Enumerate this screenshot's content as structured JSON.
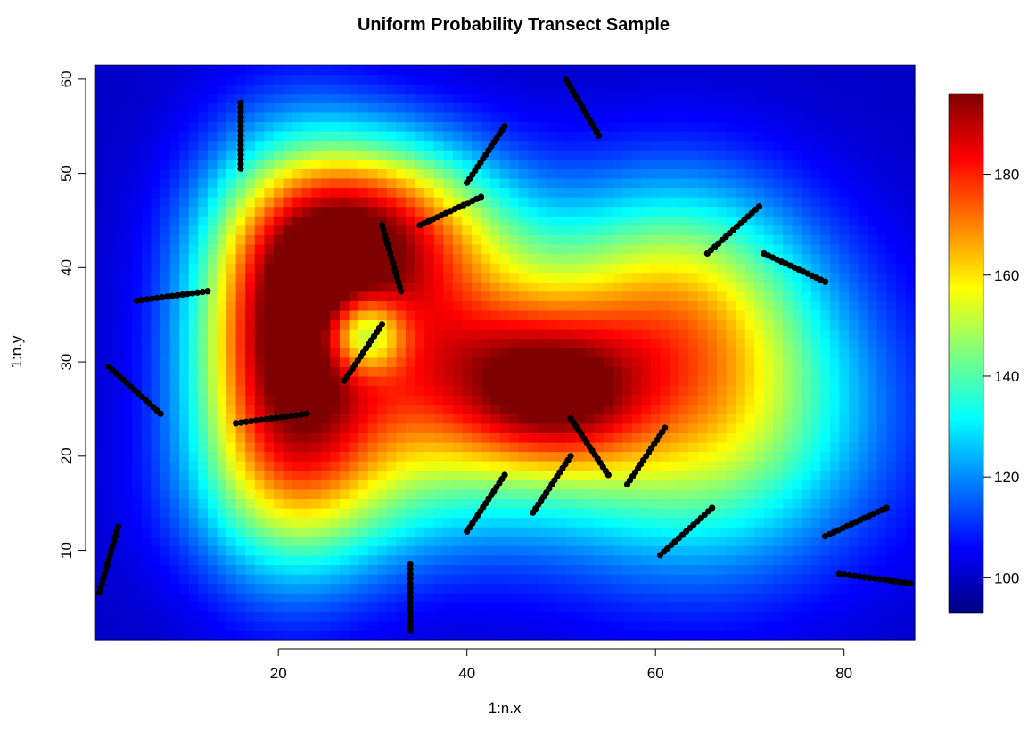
{
  "chart_data": {
    "type": "heatmap",
    "title": "Uniform Probability Transect Sample",
    "xlabel": "1:n.x",
    "ylabel": "1:n.y",
    "xlim": [
      0.5,
      87.5
    ],
    "ylim": [
      0.5,
      61.5
    ],
    "xticks": [
      "20",
      "40",
      "60",
      "80"
    ],
    "yticks": [
      "10",
      "20",
      "30",
      "40",
      "50",
      "60"
    ],
    "colorbar": {
      "range": [
        93,
        196
      ],
      "ticks": [
        "100",
        "120",
        "140",
        "160",
        "180"
      ],
      "colormap": [
        "#00007F",
        "#0000FF",
        "#007FFF",
        "#00FFFF",
        "#7FFF7F",
        "#FFFF00",
        "#FF7F00",
        "#FF0000",
        "#7F0000"
      ]
    },
    "surface": {
      "base": 100,
      "bumps": [
        {
          "x": 21,
          "y": 31,
          "sx": 7,
          "sy": 13,
          "amp": 90
        },
        {
          "x": 31,
          "y": 44,
          "sx": 9,
          "sy": 7,
          "amp": 72
        },
        {
          "x": 40,
          "y": 29,
          "sx": 10,
          "sy": 8,
          "amp": 66
        },
        {
          "x": 50,
          "y": 26,
          "sx": 6,
          "sy": 5,
          "amp": 30
        },
        {
          "x": 64,
          "y": 24,
          "sx": 13,
          "sy": 11,
          "amp": 54
        },
        {
          "x": 62,
          "y": 38,
          "sx": 10,
          "sy": 9,
          "amp": 38
        },
        {
          "x": 28,
          "y": 16,
          "sx": 12,
          "sy": 7,
          "amp": 22
        },
        {
          "x": 29,
          "y": 33,
          "sx": 3,
          "sy": 3,
          "amp": -48
        }
      ]
    },
    "transects": [
      {
        "x1": 16,
        "y1": 57.5,
        "x2": 16,
        "y2": 50.5,
        "n": 15
      },
      {
        "x1": 50.5,
        "y1": 60,
        "x2": 54,
        "y2": 54,
        "n": 15
      },
      {
        "x1": 44,
        "y1": 55,
        "x2": 40,
        "y2": 49,
        "n": 15
      },
      {
        "x1": 35,
        "y1": 44.5,
        "x2": 41.5,
        "y2": 47.5,
        "n": 15
      },
      {
        "x1": 31,
        "y1": 44.5,
        "x2": 33,
        "y2": 37.5,
        "n": 15
      },
      {
        "x1": 5,
        "y1": 36.5,
        "x2": 12.5,
        "y2": 37.5,
        "n": 15
      },
      {
        "x1": 27,
        "y1": 28,
        "x2": 31,
        "y2": 34,
        "n": 15
      },
      {
        "x1": 2,
        "y1": 29.5,
        "x2": 7.5,
        "y2": 24.5,
        "n": 15
      },
      {
        "x1": 15.5,
        "y1": 23.5,
        "x2": 23,
        "y2": 24.5,
        "n": 15
      },
      {
        "x1": 65.5,
        "y1": 41.5,
        "x2": 71,
        "y2": 46.5,
        "n": 15
      },
      {
        "x1": 71.5,
        "y1": 41.5,
        "x2": 78,
        "y2": 38.5,
        "n": 15
      },
      {
        "x1": 51,
        "y1": 24,
        "x2": 55,
        "y2": 18,
        "n": 15
      },
      {
        "x1": 57,
        "y1": 17,
        "x2": 61,
        "y2": 23,
        "n": 15
      },
      {
        "x1": 47,
        "y1": 14,
        "x2": 51,
        "y2": 20,
        "n": 15
      },
      {
        "x1": 40,
        "y1": 12,
        "x2": 44,
        "y2": 18,
        "n": 15
      },
      {
        "x1": 60.5,
        "y1": 9.5,
        "x2": 66,
        "y2": 14.5,
        "n": 15
      },
      {
        "x1": 78,
        "y1": 11.5,
        "x2": 84.5,
        "y2": 14.5,
        "n": 15
      },
      {
        "x1": 79.5,
        "y1": 7.5,
        "x2": 87,
        "y2": 6.5,
        "n": 15
      },
      {
        "x1": 1,
        "y1": 5.5,
        "x2": 3,
        "y2": 12.5,
        "n": 15
      },
      {
        "x1": 34,
        "y1": 8.5,
        "x2": 34,
        "y2": 1.5,
        "n": 15
      }
    ]
  }
}
